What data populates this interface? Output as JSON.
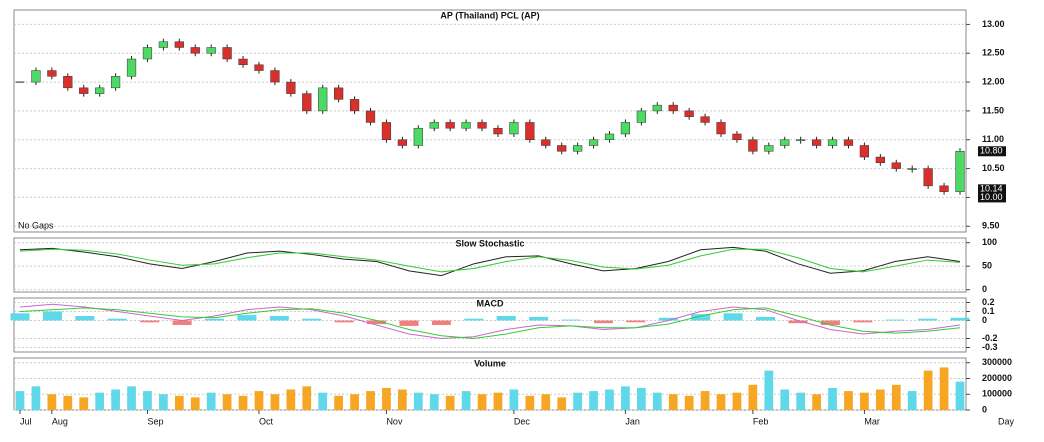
{
  "chart_data": [
    {
      "type": "candlestick",
      "title": "AP (Thailand) PCL (AP)",
      "annotation": "No Gaps",
      "close": [
        12.0,
        12.2,
        12.1,
        11.9,
        11.8,
        11.9,
        12.1,
        12.4,
        12.6,
        12.7,
        12.6,
        12.5,
        12.6,
        12.4,
        12.3,
        12.2,
        12.0,
        11.8,
        11.5,
        11.9,
        11.7,
        11.5,
        11.3,
        11.0,
        10.9,
        11.2,
        11.3,
        11.2,
        11.3,
        11.2,
        11.1,
        11.3,
        11.0,
        10.9,
        10.8,
        10.9,
        11.0,
        11.1,
        11.3,
        11.5,
        11.6,
        11.5,
        11.4,
        11.3,
        11.1,
        11.0,
        10.8,
        10.9,
        11.0,
        11.0,
        10.9,
        11.0,
        10.9,
        10.7,
        10.6,
        10.5,
        10.5,
        10.2,
        10.1,
        10.8
      ],
      "up_color": "#4cd964",
      "down_color": "#d9302c",
      "ylim": [
        9.4,
        13.25
      ],
      "yticks": [
        {
          "value": 9.5,
          "label": "9.50"
        },
        {
          "value": 10,
          "label": "10.00"
        },
        {
          "value": 10.5,
          "label": "10.50"
        },
        {
          "value": 11,
          "label": "11.00"
        },
        {
          "value": 11.5,
          "label": "11.50"
        },
        {
          "value": 12,
          "label": "12.00"
        },
        {
          "value": 12.5,
          "label": "12.50"
        },
        {
          "value": 13,
          "label": "13.00"
        }
      ],
      "price_labels": [
        {
          "value": 10.8,
          "label": "10.80"
        },
        {
          "value": 10.14,
          "label": "10.14"
        },
        {
          "value": 10,
          "label": "10.00"
        }
      ],
      "grid": true
    },
    {
      "type": "line",
      "title": "Slow Stochastic",
      "series": [
        {
          "color": "#222222",
          "values": [
            85,
            88,
            80,
            70,
            55,
            45,
            60,
            78,
            82,
            75,
            65,
            60,
            40,
            30,
            55,
            70,
            72,
            55,
            40,
            45,
            60,
            85,
            90,
            82,
            55,
            35,
            40,
            60,
            70,
            60
          ]
        },
        {
          "color": "#33cc33",
          "values": [
            82,
            86,
            84,
            76,
            63,
            52,
            55,
            68,
            78,
            78,
            70,
            63,
            50,
            38,
            45,
            60,
            70,
            62,
            48,
            44,
            52,
            72,
            86,
            86,
            68,
            45,
            38,
            50,
            63,
            58
          ]
        }
      ],
      "ylim": [
        -5,
        110
      ],
      "yticks": [
        0,
        50,
        100
      ],
      "grid": true
    },
    {
      "type": "macd",
      "title": "MACD",
      "histogram": [
        0.08,
        0.1,
        0.05,
        0.02,
        -0.02,
        -0.05,
        0.02,
        0.06,
        0.05,
        0.02,
        -0.02,
        -0.04,
        -0.06,
        -0.05,
        0.02,
        0.05,
        0.04,
        0.01,
        -0.03,
        -0.02,
        0.03,
        0.07,
        0.08,
        0.04,
        -0.03,
        -0.05,
        -0.02,
        0.01,
        0.02,
        0.03
      ],
      "pos_color": "#5fd8ea",
      "neg_color": "#f08080",
      "series": [
        {
          "color": "#cc66cc",
          "values": [
            0.15,
            0.18,
            0.15,
            0.1,
            0.05,
            0.0,
            0.05,
            0.12,
            0.15,
            0.12,
            0.05,
            -0.05,
            -0.15,
            -0.2,
            -0.18,
            -0.1,
            -0.05,
            -0.06,
            -0.1,
            -0.08,
            0.0,
            0.1,
            0.15,
            0.12,
            0.0,
            -0.1,
            -0.15,
            -0.12,
            -0.1,
            -0.05
          ]
        },
        {
          "color": "#33cc33",
          "values": [
            0.1,
            0.12,
            0.14,
            0.12,
            0.08,
            0.04,
            0.03,
            0.08,
            0.12,
            0.13,
            0.08,
            0.0,
            -0.1,
            -0.17,
            -0.2,
            -0.15,
            -0.08,
            -0.06,
            -0.08,
            -0.08,
            -0.04,
            0.05,
            0.12,
            0.14,
            0.05,
            -0.05,
            -0.12,
            -0.14,
            -0.12,
            -0.08
          ]
        }
      ],
      "ylim": [
        -0.35,
        0.25
      ],
      "yticks": [
        0.2,
        0.1,
        0,
        -0.2,
        -0.3
      ],
      "grid": true
    },
    {
      "type": "volume",
      "title": "Volume",
      "values": [
        120000,
        150000,
        100000,
        90000,
        80000,
        110000,
        130000,
        150000,
        120000,
        100000,
        90000,
        80000,
        110000,
        100000,
        90000,
        120000,
        100000,
        130000,
        150000,
        110000,
        90000,
        100000,
        120000,
        140000,
        130000,
        110000,
        100000,
        90000,
        120000,
        100000,
        110000,
        130000,
        90000,
        100000,
        80000,
        110000,
        120000,
        130000,
        150000,
        140000,
        110000,
        100000,
        90000,
        120000,
        100000,
        110000,
        160000,
        250000,
        130000,
        110000,
        100000,
        140000,
        120000,
        110000,
        130000,
        160000,
        120000,
        250000,
        270000,
        180000
      ],
      "up_color": "#5fd8ea",
      "down_color": "#f5a623",
      "categories": [
        "Jul",
        null,
        "Aug",
        null,
        null,
        null,
        null,
        null,
        "Sep",
        null,
        null,
        null,
        null,
        null,
        null,
        "Oct",
        null,
        null,
        null,
        null,
        null,
        null,
        null,
        "Nov",
        null,
        null,
        null,
        null,
        null,
        null,
        null,
        "Dec",
        null,
        null,
        null,
        null,
        null,
        null,
        "Jan",
        null,
        null,
        null,
        null,
        null,
        null,
        null,
        "Feb",
        null,
        null,
        null,
        null,
        null,
        null,
        "Mar",
        null,
        null,
        null,
        null,
        null,
        null
      ],
      "xlabel": "Day",
      "ylim": [
        0,
        330000
      ],
      "yticks": [
        0,
        100000,
        200000,
        300000
      ],
      "grid": true
    }
  ]
}
